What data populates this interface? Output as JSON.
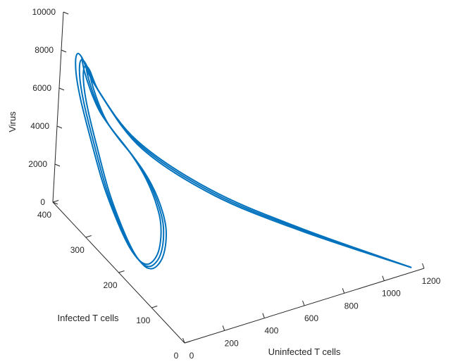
{
  "chart_data": {
    "type": "line3d",
    "title": "",
    "axes": {
      "x": {
        "label": "Uninfected T cells",
        "range": [
          0,
          1200
        ],
        "ticks": [
          0,
          200,
          400,
          600,
          800,
          1000,
          1200
        ]
      },
      "y": {
        "label": "Infected T cells",
        "range": [
          0,
          400
        ],
        "ticks": [
          0,
          100,
          200,
          300,
          400
        ]
      },
      "z": {
        "label": "Virus",
        "range": [
          0,
          10000
        ],
        "ticks": [
          0,
          2000,
          4000,
          6000,
          8000,
          10000
        ]
      }
    },
    "grid": false,
    "legend": "none",
    "series": [
      {
        "color": "#0072BD",
        "loops": 3,
        "points": [
          {
            "x": 1150,
            "y": 10,
            "z": 30
          },
          {
            "x": 750,
            "y": 110,
            "z": 1500
          },
          {
            "x": 420,
            "y": 180,
            "z": 3200
          },
          {
            "x": 150,
            "y": 245,
            "z": 5400
          },
          {
            "x": 25,
            "y": 300,
            "z": 7600
          },
          {
            "x": 2,
            "y": 330,
            "z": 8600
          },
          {
            "x": 2,
            "y": 345,
            "z": 8400
          },
          {
            "x": 5,
            "y": 345,
            "z": 7500
          },
          {
            "x": 8,
            "y": 330,
            "z": 6400
          },
          {
            "x": 12,
            "y": 300,
            "z": 5000
          },
          {
            "x": 18,
            "y": 260,
            "z": 3300
          },
          {
            "x": 30,
            "y": 220,
            "z": 2000
          },
          {
            "x": 52,
            "y": 195,
            "z": 1100
          },
          {
            "x": 80,
            "y": 180,
            "z": 600
          },
          {
            "x": 115,
            "y": 178,
            "z": 350
          },
          {
            "x": 155,
            "y": 183,
            "z": 320
          },
          {
            "x": 200,
            "y": 195,
            "z": 420
          },
          {
            "x": 245,
            "y": 215,
            "z": 650
          },
          {
            "x": 280,
            "y": 238,
            "z": 950
          },
          {
            "x": 300,
            "y": 262,
            "z": 1250
          },
          {
            "x": 305,
            "y": 283,
            "z": 1650
          },
          {
            "x": 296,
            "y": 298,
            "z": 2100
          },
          {
            "x": 270,
            "y": 308,
            "z": 2700
          },
          {
            "x": 225,
            "y": 315,
            "z": 3500
          },
          {
            "x": 160,
            "y": 318,
            "z": 4500
          },
          {
            "x": 95,
            "y": 320,
            "z": 5600
          },
          {
            "x": 50,
            "y": 323,
            "z": 6700
          },
          {
            "x": 20,
            "y": 330,
            "z": 7800
          },
          {
            "x": 2,
            "y": 330,
            "z": 8600
          }
        ]
      }
    ]
  }
}
